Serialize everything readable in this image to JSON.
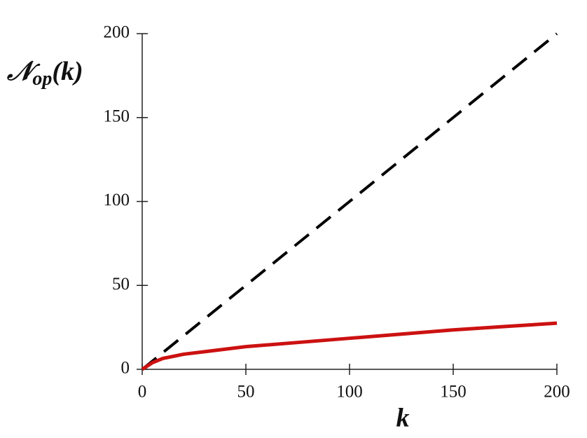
{
  "chart_data": {
    "type": "line",
    "xlabel": "k",
    "ylabel": [
      "𝒩",
      "op",
      "(k)"
    ],
    "x": [
      0,
      5,
      10,
      20,
      30,
      50,
      75,
      100,
      125,
      150,
      175,
      200
    ],
    "series": [
      {
        "color": "#000000",
        "dashed": true,
        "values": [
          0,
          5,
          10,
          20,
          30,
          50,
          75,
          100,
          125,
          150,
          175,
          200
        ]
      },
      {
        "color": "#cc1111",
        "dashed": false,
        "values": [
          0,
          4,
          6.5,
          9,
          10.5,
          13.5,
          16,
          18.5,
          21,
          23.5,
          25.5,
          27.5
        ]
      }
    ],
    "xlim": [
      0,
      200
    ],
    "ylim": [
      0,
      200
    ],
    "xticks": [
      0,
      50,
      100,
      150,
      200
    ],
    "yticks": [
      0,
      50,
      100,
      150,
      200
    ]
  }
}
